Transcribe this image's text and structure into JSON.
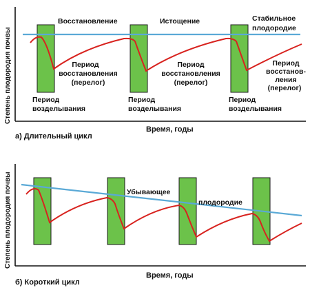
{
  "colors": {
    "cultivation_block": "#6cc24a",
    "cultivation_border": "#1a1a1a",
    "fertility_curve": "#d8231f",
    "trend_line": "#5aa9d6",
    "axis": "#111111"
  },
  "panel_a": {
    "ylabel": "Степень плодородия почвы",
    "xlabel": "Время, годы",
    "caption": "а) Длительный цикл",
    "top_labels": {
      "recovery": "Восстановление",
      "depletion": "Истощение",
      "stable_line1": "Стабильное",
      "stable_line2": "плодородие"
    },
    "recovery_period": {
      "line1": "Период",
      "line2": "восстановления",
      "line3": "(перелог)"
    },
    "recovery_period_hyphen": {
      "line1": "Период",
      "line2": "восстанов-",
      "line3": "ления",
      "line4": "(перелог)"
    },
    "cultivation_period": {
      "line1": "Период",
      "line2": "возделывания"
    }
  },
  "panel_b": {
    "ylabel": "Степень плодородия почвы",
    "xlabel": "Время, годы",
    "caption": "б) Короткий цикл",
    "trend_word1": "Убывающее",
    "trend_word2": "плодородие"
  }
}
